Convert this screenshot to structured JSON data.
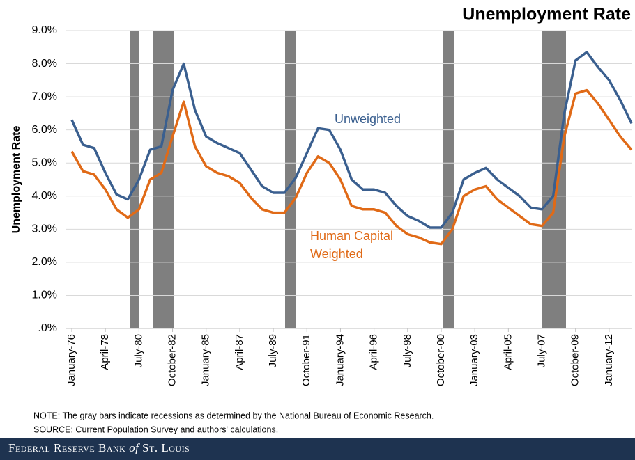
{
  "chart_data": {
    "type": "line",
    "title": "Unemployment Rate",
    "y_label": "Unemployment Rate",
    "categories": [
      "January-76",
      null,
      null,
      "April-78",
      null,
      null,
      "July-80",
      null,
      null,
      "October-82",
      null,
      null,
      "January-85",
      null,
      null,
      "April-87",
      null,
      null,
      "July-89",
      null,
      null,
      "October-91",
      null,
      null,
      "January-94",
      null,
      null,
      "April-96",
      null,
      null,
      "July-98",
      null,
      null,
      "October-00",
      null,
      null,
      "January-03",
      null,
      null,
      "April-05",
      null,
      null,
      "July-07",
      null,
      null,
      "October-09",
      null,
      null,
      "January-12",
      null,
      null
    ],
    "series": [
      {
        "name": "Unweighted",
        "color": "#3a5f8f",
        "values": [
          6.3,
          5.55,
          5.45,
          4.7,
          4.05,
          3.9,
          4.5,
          5.4,
          5.5,
          7.2,
          8.0,
          6.6,
          5.8,
          5.6,
          5.45,
          5.3,
          4.8,
          4.3,
          4.1,
          4.1,
          4.55,
          5.3,
          6.05,
          6.0,
          5.4,
          4.5,
          4.2,
          4.2,
          4.1,
          3.7,
          3.4,
          3.25,
          3.05,
          3.05,
          3.5,
          4.5,
          4.7,
          4.85,
          4.5,
          4.25,
          4.0,
          3.65,
          3.6,
          4.0,
          6.5,
          8.1,
          8.35,
          7.9,
          7.5,
          6.9,
          6.2
        ]
      },
      {
        "name": "Human Capital Weighted",
        "label_lines": [
          "Human Capital",
          "Weighted"
        ],
        "color": "#e06a17",
        "values": [
          5.35,
          4.75,
          4.65,
          4.2,
          3.6,
          3.35,
          3.6,
          4.5,
          4.7,
          5.8,
          6.85,
          5.5,
          4.9,
          4.7,
          4.6,
          4.4,
          3.95,
          3.6,
          3.5,
          3.5,
          3.95,
          4.7,
          5.2,
          5.0,
          4.5,
          3.7,
          3.6,
          3.6,
          3.5,
          3.1,
          2.85,
          2.75,
          2.6,
          2.55,
          3.0,
          4.0,
          4.2,
          4.3,
          3.9,
          3.65,
          3.4,
          3.15,
          3.1,
          3.5,
          5.8,
          7.1,
          7.2,
          6.8,
          6.3,
          5.8,
          5.4
        ]
      }
    ],
    "ylim": [
      0,
      9
    ],
    "yticks": [
      {
        "value": 0,
        "label": ".0%"
      },
      {
        "value": 1,
        "label": "1.0%"
      },
      {
        "value": 2,
        "label": "2.0%"
      },
      {
        "value": 3,
        "label": "3.0%"
      },
      {
        "value": 4,
        "label": "4.0%"
      },
      {
        "value": 5,
        "label": "5.0%"
      },
      {
        "value": 6,
        "label": "6.0%"
      },
      {
        "value": 7,
        "label": "7.0%"
      },
      {
        "value": 8,
        "label": "8.0%"
      },
      {
        "value": 9,
        "label": "9.0%"
      }
    ],
    "grid": true,
    "note": "NOTE: The gray bars indicate recessions as determined by the National Bureau of Economic Research.",
    "source": "SOURCE: Current Population Survey and authors' calculations.",
    "footer": [
      "Federal Reserve Bank",
      "of",
      "St. Louis"
    ]
  }
}
